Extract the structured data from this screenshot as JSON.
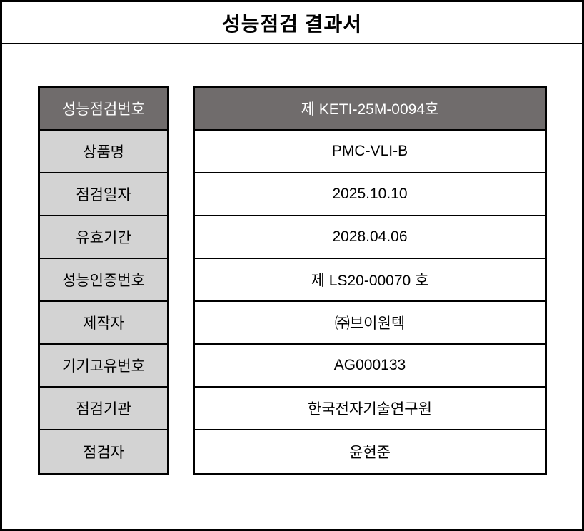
{
  "page": {
    "title": "성능점검 결과서"
  },
  "colors": {
    "highlight_row_bg": "#706c6c",
    "label_cell_bg": "#d3d3d3",
    "value_cell_bg": "#ffffff",
    "border": "#000000",
    "highlight_text": "#ffffff",
    "text": "#000000"
  },
  "table": {
    "rows": [
      {
        "label": "성능점검번호",
        "value": "제 KETI-25M-0094호",
        "highlight": true
      },
      {
        "label": "상품명",
        "value": "PMC-VLI-B",
        "highlight": false
      },
      {
        "label": "점검일자",
        "value": "2025.10.10",
        "highlight": false
      },
      {
        "label": "유효기간",
        "value": "2028.04.06",
        "highlight": false
      },
      {
        "label": "성능인증번호",
        "value": "제 LS20-00070 호",
        "highlight": false
      },
      {
        "label": "제작자",
        "value": "㈜브이원텍",
        "highlight": false
      },
      {
        "label": "기기고유번호",
        "value": "AG000133",
        "highlight": false
      },
      {
        "label": "점검기관",
        "value": "한국전자기술연구원",
        "highlight": false
      },
      {
        "label": "점검자",
        "value": "윤현준",
        "highlight": false
      }
    ]
  }
}
